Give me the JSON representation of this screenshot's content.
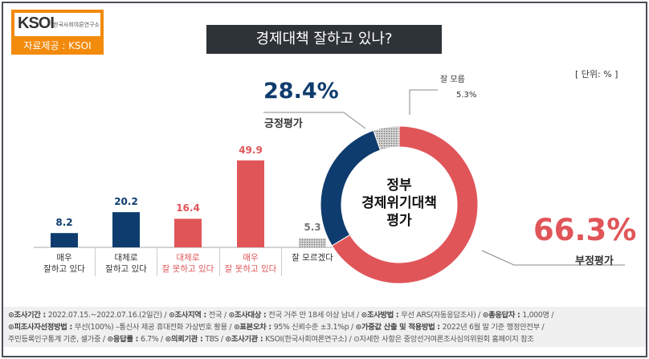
{
  "logo": {
    "text": "KSOI",
    "sub": "한국사회여론연구소",
    "source": "자료제공 : KSOI"
  },
  "title": "경제대책 잘하고 있나?",
  "unit": "[ 단위: % ]",
  "colors": {
    "positive": "#0f3c6e",
    "negative": "#e05558",
    "unknown": "#b0b0b0"
  },
  "chart_data": [
    {
      "type": "bar",
      "categories": [
        "매우\n잘하고 있다",
        "대체로\n잘하고 있다",
        "대체로\n잘 못하고 있다",
        "매우\n잘 못하고 있다",
        "잘 모르겠다"
      ],
      "values": [
        8.2,
        20.2,
        16.4,
        49.9,
        5.3
      ],
      "value_labels": [
        "8.2",
        "20.2",
        "16.4",
        "49.9",
        "5.3"
      ],
      "colors": [
        "#0f3c6e",
        "#0f3c6e",
        "#e05558",
        "#e05558",
        "#b0b0b0"
      ]
    },
    {
      "type": "pie",
      "center_label": "정부\n경제위기대책\n평가",
      "slices": [
        {
          "name": "부정평가",
          "value": 66.3,
          "label": "66.3%"
        },
        {
          "name": "긍정평가",
          "value": 28.4,
          "label": "28.4%"
        },
        {
          "name": "잘 모름",
          "value": 5.3,
          "label": "5.3%"
        }
      ]
    }
  ],
  "footer": [
    [
      [
        "조사기간",
        "2022.07.15.~2022.07.16.(2일간)"
      ],
      [
        "조사지역",
        "전국"
      ],
      [
        "조사대상",
        "전국 거주 만 18세 이상 남녀"
      ],
      [
        "조사방법",
        "무선 ARS(자동응답조사)"
      ],
      [
        "총응답자",
        "1,000명 /"
      ]
    ],
    [
      [
        "피조사자선정방법",
        "무선(100%) –통신사 제공 휴대전화 가상번호 활용"
      ],
      [
        "표본오차",
        "95% 신뢰수준 ±3.1%p"
      ],
      [
        "가중값 산출 및 적용방법",
        "2022년 6월 말 기준 행정안전부"
      ]
    ],
    [
      [
        "",
        "주민등록인구통계 기준, 셀가중"
      ],
      [
        "응답률",
        "6.7%"
      ],
      [
        "의뢰기관",
        "TBS"
      ],
      [
        "조사기관",
        "KSOI(한국사회여론연구소)"
      ],
      [
        "",
        "자세한 사항은 중앙선거여론조사심의위원회 홈페이지 참조"
      ]
    ]
  ]
}
